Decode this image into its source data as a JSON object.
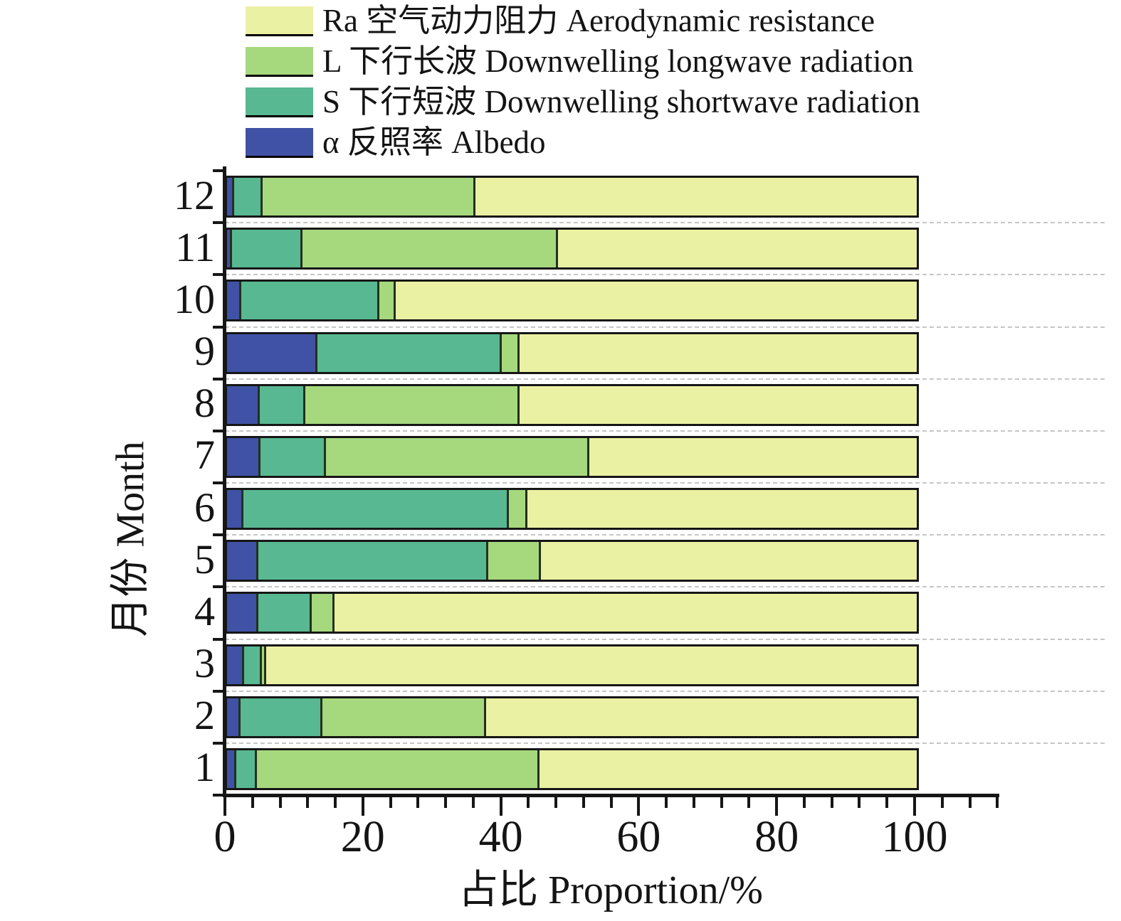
{
  "chart_data": {
    "type": "bar",
    "subtype": "horizontal_stacked_100_percent",
    "title": "",
    "xlabel": "占比 Proportion/%",
    "ylabel": "月份 Month",
    "xlim": [
      0,
      112
    ],
    "xticks": [
      0,
      20,
      40,
      60,
      80,
      100
    ],
    "minor_tick_step": 4,
    "grid": "dashed horizontal lines between bars",
    "legend_position": "top-left above plot",
    "categories_top_to_bottom": [
      "12",
      "11",
      "10",
      "9",
      "8",
      "7",
      "6",
      "5",
      "4",
      "3",
      "2",
      "1"
    ],
    "series": [
      {
        "name": "α 反照率 Albedo",
        "color": "#3f52a6",
        "values_by_month_1_to_12": [
          1.3,
          2.0,
          2.5,
          4.5,
          4.5,
          2.4,
          4.9,
          4.7,
          13.1,
          2.1,
          0.7,
          1.0
        ]
      },
      {
        "name": "S 下行短波 Downwelling shortwave radiation",
        "color": "#58b892",
        "values_by_month_1_to_12": [
          3.0,
          11.8,
          2.6,
          7.8,
          33.4,
          38.5,
          9.4,
          6.7,
          26.7,
          20.0,
          10.2,
          4.2
        ]
      },
      {
        "name": "L 下行长波 Downwelling longwave radiation",
        "color": "#a6d97e",
        "values_by_month_1_to_12": [
          41.0,
          23.8,
          0.6,
          3.3,
          7.6,
          2.6,
          38.2,
          31.0,
          2.6,
          2.4,
          37.1,
          30.8
        ]
      },
      {
        "name": "Ra 空气动力阻力 Aerodynamic resistance",
        "color": "#ebf1a3",
        "values_by_month_1_to_12": [
          54.7,
          62.4,
          94.3,
          84.4,
          54.5,
          56.5,
          47.5,
          57.6,
          57.6,
          75.5,
          52.0,
          64.0
        ]
      }
    ],
    "legend": [
      {
        "label": "Ra 空气动力阻力 Aerodynamic resistance",
        "color": "#ebf1a3"
      },
      {
        "label": "L 下行长波 Downwelling longwave radiation",
        "color": "#a6d97e"
      },
      {
        "label": "S 下行短波 Downwelling shortwave radiation",
        "color": "#58b892"
      },
      {
        "label": "α 反照率 Albedo",
        "color": "#3f52a6"
      }
    ]
  }
}
